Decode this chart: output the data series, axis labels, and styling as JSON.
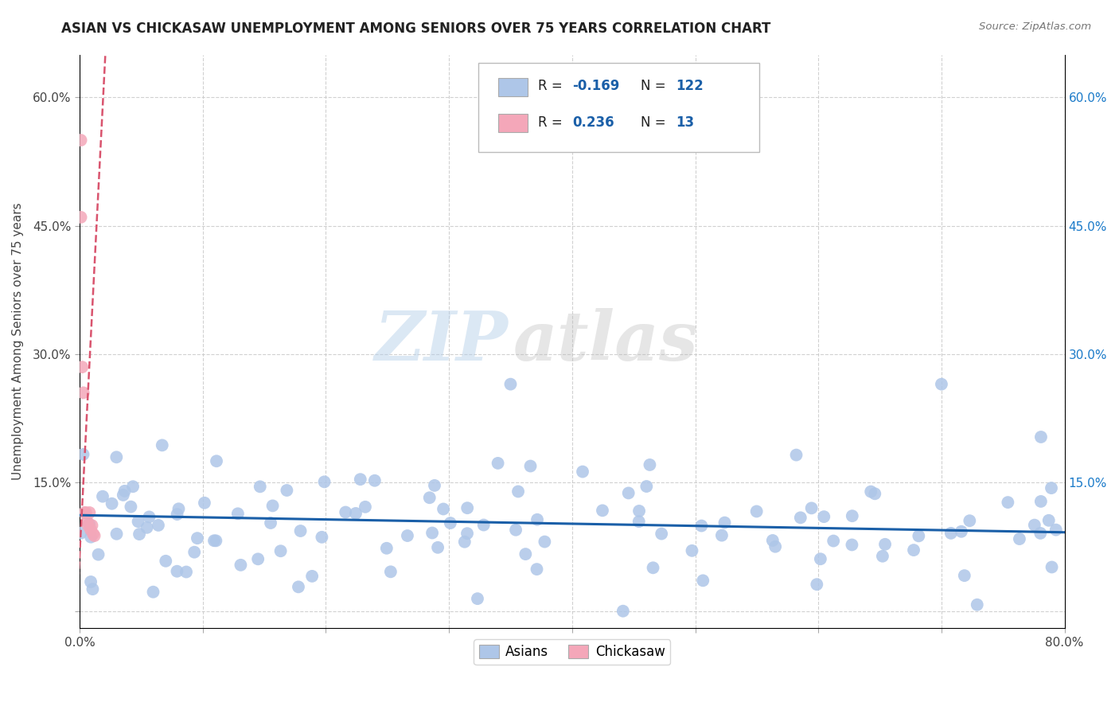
{
  "title": "ASIAN VS CHICKASAW UNEMPLOYMENT AMONG SENIORS OVER 75 YEARS CORRELATION CHART",
  "source": "Source: ZipAtlas.com",
  "ylabel": "Unemployment Among Seniors over 75 years",
  "xlim": [
    0.0,
    0.8
  ],
  "ylim": [
    -0.02,
    0.65
  ],
  "yticks": [
    0.0,
    0.15,
    0.3,
    0.45,
    0.6
  ],
  "xticks": [
    0.0,
    0.1,
    0.2,
    0.3,
    0.4,
    0.5,
    0.6,
    0.7,
    0.8
  ],
  "asian_color": "#aec6e8",
  "chickasaw_color": "#f4a7b9",
  "asian_line_color": "#1a5fa8",
  "chickasaw_line_color": "#d9546e",
  "R_asian": -0.169,
  "N_asian": 122,
  "R_chickasaw": 0.236,
  "N_chickasaw": 13,
  "watermark_zip": "ZIP",
  "watermark_atlas": "atlas",
  "legend_label_asian": "Asians",
  "legend_label_chickasaw": "Chickasaw",
  "asian_line_intercept": 0.112,
  "asian_line_slope": -0.025,
  "chickasaw_line_intercept": 0.065,
  "chickasaw_line_slope": 28.0
}
